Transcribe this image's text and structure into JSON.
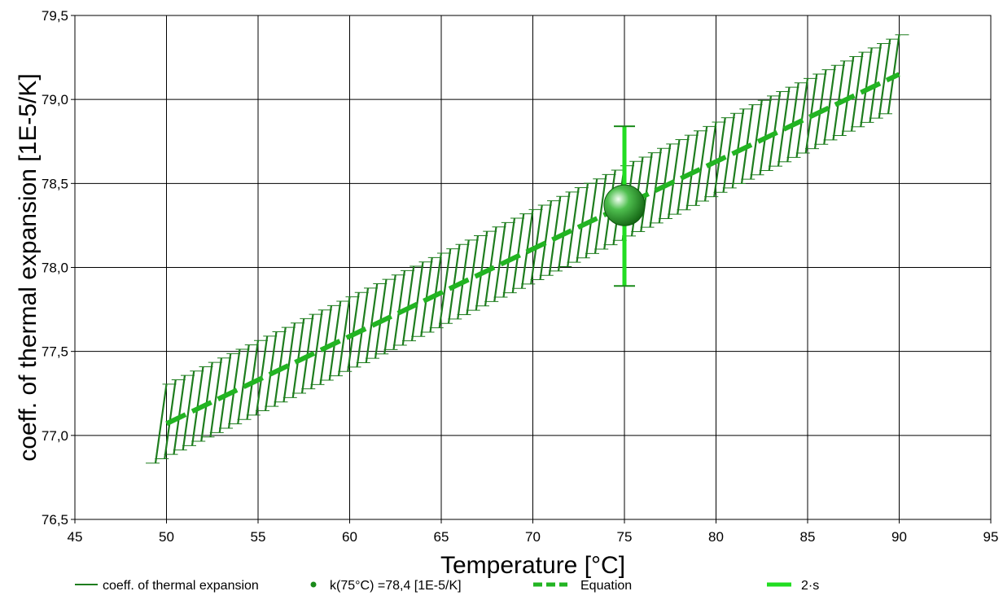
{
  "chart_data": {
    "type": "line",
    "xlabel": "Temperature [°C]",
    "ylabel": "coeff. of thermal expansion [1E-5/K]",
    "xlim": [
      45,
      95
    ],
    "ylim": [
      76.5,
      79.5
    ],
    "x_ticks": [
      45,
      50,
      55,
      60,
      65,
      70,
      75,
      80,
      85,
      90,
      95
    ],
    "y_ticks": [
      76.5,
      77.0,
      77.5,
      78.0,
      78.5,
      79.0,
      79.5
    ],
    "x_tick_labels": [
      "45",
      "50",
      "55",
      "60",
      "65",
      "70",
      "75",
      "80",
      "85",
      "90",
      "95"
    ],
    "y_tick_labels": [
      "76,5",
      "77,0",
      "77,5",
      "78,0",
      "78,5",
      "79,0",
      "79,5"
    ],
    "grid": true,
    "legend_position": "bottom",
    "series": [
      {
        "name": "coeff. of thermal expansion",
        "kind": "errorbars",
        "color": "#1e7d1e",
        "x_start": 50,
        "x_end": 90,
        "x_step": 0.5,
        "center_at_x_start": 77.07,
        "center_at_x_end": 79.15,
        "half_width": 0.235,
        "skew": 0.6
      },
      {
        "name": "k(75°C) =78,4 [1E-5/K]",
        "kind": "point",
        "color": "#1a8a1a",
        "x": 75,
        "y": 78.37
      },
      {
        "name": "Equation",
        "kind": "dashed-line",
        "color": "#22b422",
        "x": [
          50,
          90
        ],
        "y": [
          77.07,
          79.15
        ]
      },
      {
        "name": "2·s",
        "kind": "errorbar",
        "color": "#22dd22",
        "x": 75,
        "y_low": 77.89,
        "y_high": 78.84
      }
    ],
    "legend": [
      {
        "label": "coeff. of thermal expansion",
        "symbol": "line",
        "color": "#1e7d1e"
      },
      {
        "label": "k(75°C) =78,4 [1E-5/K]",
        "symbol": "dot",
        "color": "#1a8a1a"
      },
      {
        "label": "Equation",
        "symbol": "dash",
        "color": "#22b422"
      },
      {
        "label": "2·s",
        "symbol": "bar",
        "color": "#22dd22"
      }
    ]
  }
}
